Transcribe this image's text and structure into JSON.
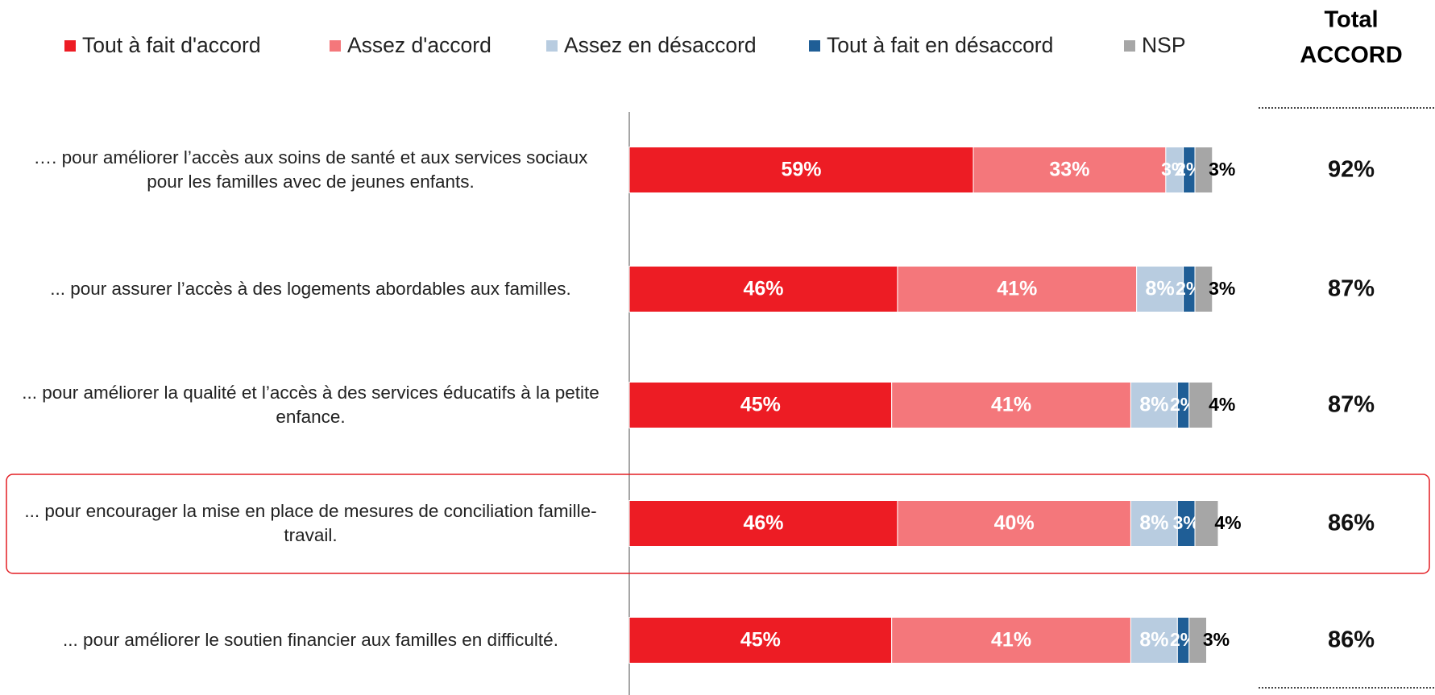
{
  "chart_data": {
    "type": "stacked-bar-horizontal",
    "categories": [
      "…. pour améliorer l’accès aux soins de santé et aux services sociaux pour les familles avec de jeunes enfants.",
      "... pour assurer l’accès à des logements abordables aux familles.",
      "... pour améliorer la qualité et l’accès à des services éducatifs à la petite enfance.",
      "... pour encourager la mise en place de mesures de conciliation famille- travail.",
      "... pour améliorer le soutien financier aux familles en difficulté."
    ],
    "series": [
      {
        "name": "Tout à fait d'accord",
        "color": "#ed1c24",
        "values": [
          59,
          46,
          45,
          46,
          45
        ],
        "value_labels": [
          "59%",
          "46%",
          "45%",
          "46%",
          "45%"
        ]
      },
      {
        "name": "Assez d'accord",
        "color": "#f4777b",
        "values": [
          33,
          41,
          41,
          40,
          41
        ],
        "value_labels": [
          "33%",
          "41%",
          "41%",
          "40%",
          "41%"
        ]
      },
      {
        "name": "Assez en désaccord",
        "color": "#b8cce0",
        "values": [
          3,
          8,
          8,
          8,
          8
        ],
        "value_labels": [
          "3%",
          "8%",
          "8%",
          "8%",
          "8%"
        ]
      },
      {
        "name": "Tout à fait en désaccord",
        "color": "#1f5e96",
        "values": [
          2,
          2,
          2,
          3,
          2
        ],
        "value_labels": [
          "2%",
          "2%",
          "2%",
          "3%",
          "2%"
        ]
      },
      {
        "name": "NSP",
        "color": "#a6a6a6",
        "values": [
          3,
          3,
          4,
          4,
          3
        ],
        "value_labels": [
          "3%",
          "3%",
          "4%",
          "4%",
          "3%"
        ]
      }
    ],
    "total_header": [
      "Total",
      "ACCORD"
    ],
    "totals": {
      "values": [
        92,
        87,
        87,
        86,
        86
      ],
      "value_labels": [
        "92%",
        "87%",
        "87%",
        "86%",
        "86%"
      ]
    },
    "highlight": 3
  }
}
